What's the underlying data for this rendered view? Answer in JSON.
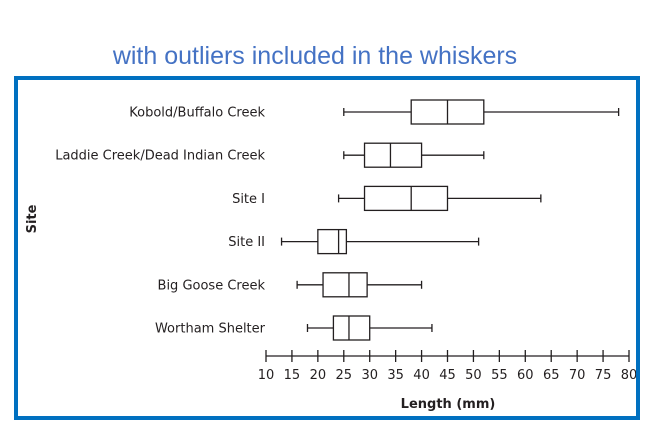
{
  "caption": "with outliers included in the whiskers",
  "chart_data": {
    "type": "boxplot",
    "orientation": "horizontal",
    "xlabel": "Length (mm)",
    "ylabel": "Site",
    "xlim": [
      10,
      80
    ],
    "xticks": [
      10,
      15,
      20,
      25,
      30,
      35,
      40,
      45,
      50,
      55,
      60,
      65,
      70,
      75,
      80
    ],
    "grid": false,
    "series": [
      {
        "name": "Kobold/Buffalo Creek",
        "min": 25,
        "q1": 38,
        "median": 45,
        "q3": 52,
        "max": 78
      },
      {
        "name": "Laddie Creek/Dead Indian Creek",
        "min": 25,
        "q1": 29,
        "median": 34,
        "q3": 40,
        "max": 52
      },
      {
        "name": "Site I",
        "min": 24,
        "q1": 29,
        "median": 38,
        "q3": 45,
        "max": 63
      },
      {
        "name": "Site II",
        "min": 13,
        "q1": 20,
        "median": 24,
        "q3": 25.5,
        "max": 51
      },
      {
        "name": "Big Goose Creek",
        "min": 16,
        "q1": 21,
        "median": 26,
        "q3": 29.5,
        "max": 40
      },
      {
        "name": "Wortham Shelter",
        "min": 18,
        "q1": 23,
        "median": 26,
        "q3": 30,
        "max": 42
      }
    ]
  },
  "colors": {
    "frame": "#0070c0",
    "caption": "#4472c4",
    "ink": "#231f20"
  }
}
